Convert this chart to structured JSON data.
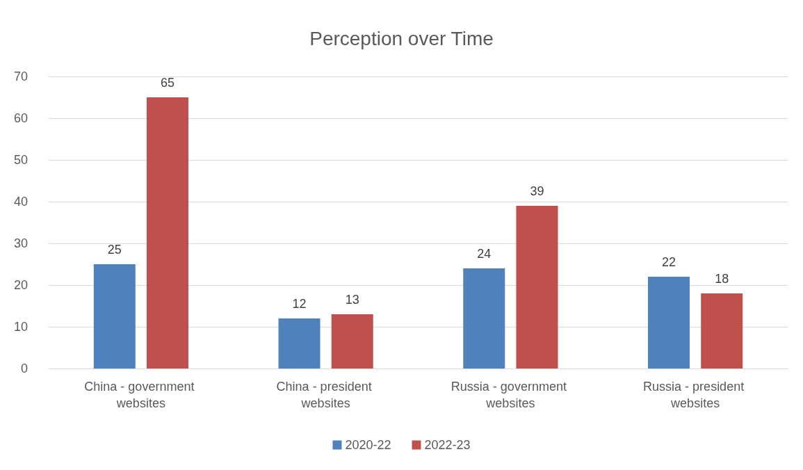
{
  "chart_data": {
    "type": "bar",
    "title": "Perception over Time",
    "categories": [
      "China - government websites",
      "China - president websites",
      "Russia - government websites",
      "Russia - president websites"
    ],
    "series": [
      {
        "name": "2020-22",
        "color": "#4f81bd",
        "values": [
          25,
          12,
          24,
          22
        ]
      },
      {
        "name": "2022-23",
        "color": "#c0504d",
        "values": [
          65,
          13,
          39,
          18
        ]
      }
    ],
    "ylim": [
      0,
      70
    ],
    "yticks": [
      0,
      10,
      20,
      30,
      40,
      50,
      60,
      70
    ],
    "grid": "y",
    "legend": "bottom",
    "data_labels": true
  }
}
